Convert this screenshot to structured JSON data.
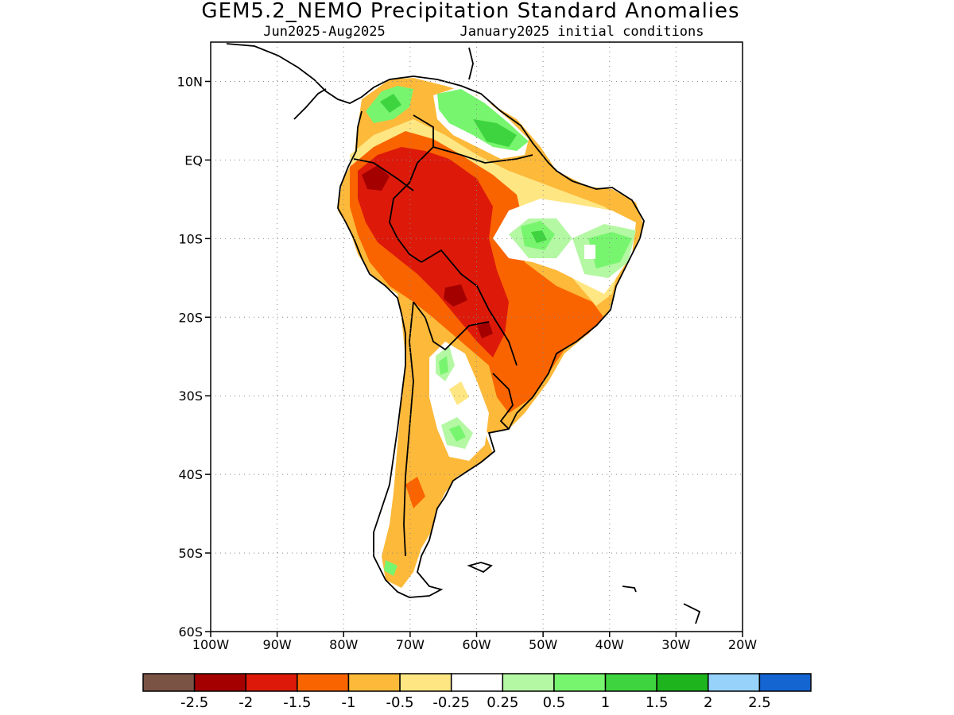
{
  "title": "GEM5.2_NEMO Precipitation Standard Anomalies",
  "subtitle_left": "Jun2025-Aug2025",
  "subtitle_right": "January2025 initial conditions",
  "map": {
    "lon_range": [
      -100,
      -20
    ],
    "lat_range": [
      -60,
      15
    ],
    "lat_ticks": [
      {
        "value": 10,
        "label": "10N"
      },
      {
        "value": 0,
        "label": "EQ"
      },
      {
        "value": -10,
        "label": "10S"
      },
      {
        "value": -20,
        "label": "20S"
      },
      {
        "value": -30,
        "label": "30S"
      },
      {
        "value": -40,
        "label": "40S"
      },
      {
        "value": -50,
        "label": "50S"
      },
      {
        "value": -60,
        "label": "60S"
      }
    ],
    "lon_ticks": [
      {
        "value": -100,
        "label": "100W"
      },
      {
        "value": -90,
        "label": "90W"
      },
      {
        "value": -80,
        "label": "80W"
      },
      {
        "value": -70,
        "label": "70W"
      },
      {
        "value": -60,
        "label": "60W"
      },
      {
        "value": -50,
        "label": "50W"
      },
      {
        "value": -40,
        "label": "40W"
      },
      {
        "value": -30,
        "label": "30W"
      },
      {
        "value": -20,
        "label": "20W"
      }
    ],
    "grid": true
  },
  "colorbar": {
    "colors": [
      "#7b5345",
      "#a50000",
      "#dd1a0a",
      "#fa6400",
      "#fdb93a",
      "#fee683",
      "#ffffff",
      "#b4f8a4",
      "#78f56f",
      "#3ed43f",
      "#1eb41e",
      "#96d2fa",
      "#1464d2"
    ],
    "labels": [
      "-2.5",
      "-2",
      "-1.5",
      "-1",
      "-0.5",
      "-0.25",
      "0.25",
      "0.5",
      "1",
      "1.5",
      "2",
      "2.5"
    ]
  }
}
